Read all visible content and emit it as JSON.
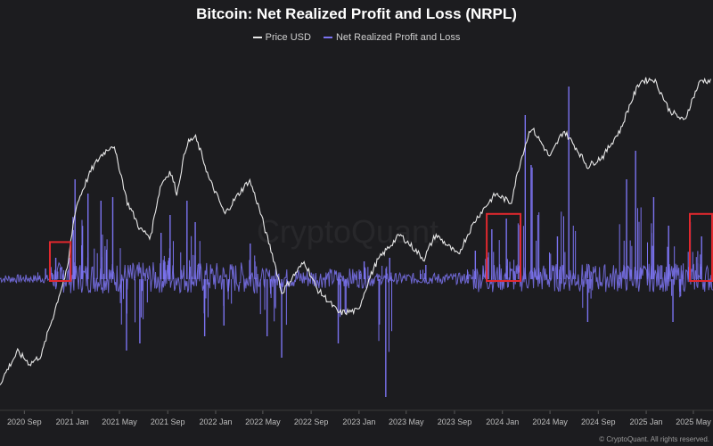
{
  "chart_data": {
    "type": "line",
    "title": "Bitcoin: Net Realized Profit and Loss (NRPL)",
    "legend_position": "top-center",
    "grid": false,
    "x_range": [
      "2020-07-01",
      "2025-06-20"
    ],
    "x_ticks": [
      "2020 Sep",
      "2021 Jan",
      "2021 May",
      "2021 Sep",
      "2022 Jan",
      "2022 May",
      "2022 Sep",
      "2023 Jan",
      "2023 May",
      "2023 Sep",
      "2024 Jan",
      "2024 May",
      "2024 Sep",
      "2025 Jan",
      "2025 May"
    ],
    "series": [
      {
        "name": "Price USD",
        "color": "#e8e8e8",
        "points": [
          [
            "2020-07-01",
            9100
          ],
          [
            "2020-08-15",
            11800
          ],
          [
            "2020-09-15",
            10700
          ],
          [
            "2020-10-15",
            11500
          ],
          [
            "2020-11-15",
            16000
          ],
          [
            "2020-12-20",
            23000
          ],
          [
            "2021-01-10",
            38000
          ],
          [
            "2021-02-20",
            52000
          ],
          [
            "2021-03-15",
            58000
          ],
          [
            "2021-04-14",
            63500
          ],
          [
            "2021-05-20",
            40000
          ],
          [
            "2021-06-22",
            32000
          ],
          [
            "2021-07-20",
            30000
          ],
          [
            "2021-08-15",
            46000
          ],
          [
            "2021-09-07",
            51000
          ],
          [
            "2021-09-25",
            42500
          ],
          [
            "2021-10-20",
            64000
          ],
          [
            "2021-11-10",
            67500
          ],
          [
            "2021-12-15",
            48000
          ],
          [
            "2022-01-24",
            36000
          ],
          [
            "2022-03-28",
            47500
          ],
          [
            "2022-05-10",
            30500
          ],
          [
            "2022-06-18",
            19000
          ],
          [
            "2022-08-15",
            24500
          ],
          [
            "2022-09-15",
            19700
          ],
          [
            "2022-11-10",
            16200
          ],
          [
            "2022-12-30",
            16500
          ],
          [
            "2023-02-15",
            24500
          ],
          [
            "2023-04-15",
            30500
          ],
          [
            "2023-06-15",
            25000
          ],
          [
            "2023-07-15",
            30500
          ],
          [
            "2023-09-10",
            25800
          ],
          [
            "2023-10-25",
            34500
          ],
          [
            "2023-12-15",
            42500
          ],
          [
            "2024-01-23",
            39500
          ],
          [
            "2024-03-14",
            73000
          ],
          [
            "2024-05-01",
            57000
          ],
          [
            "2024-06-05",
            71000
          ],
          [
            "2024-08-05",
            53000
          ],
          [
            "2024-09-15",
            58000
          ],
          [
            "2024-10-29",
            72000
          ],
          [
            "2024-12-17",
            106000
          ],
          [
            "2025-01-20",
            108000
          ],
          [
            "2025-02-28",
            84000
          ],
          [
            "2025-04-08",
            76500
          ],
          [
            "2025-05-20",
            107000
          ],
          [
            "2025-06-15",
            106000
          ]
        ]
      },
      {
        "name": "Net Realized Profit and Loss",
        "color": "#7b73f0",
        "points": [
          [
            "2020-07-01",
            0.01
          ],
          [
            "2020-09-15",
            0.02
          ],
          [
            "2020-10-25",
            0.3
          ],
          [
            "2020-11-20",
            0.6
          ],
          [
            "2020-12-25",
            0.6
          ],
          [
            "2021-01-08",
            2.8
          ],
          [
            "2021-02-10",
            2.4
          ],
          [
            "2021-03-15",
            2.2
          ],
          [
            "2021-04-14",
            2.3
          ],
          [
            "2021-05-19",
            -2.0
          ],
          [
            "2021-06-22",
            -1.8
          ],
          [
            "2021-08-15",
            1.3
          ],
          [
            "2021-09-07",
            1.8
          ],
          [
            "2021-10-20",
            2.2
          ],
          [
            "2021-11-10",
            1.6
          ],
          [
            "2021-12-04",
            -1.6
          ],
          [
            "2022-01-22",
            -1.3
          ],
          [
            "2022-03-30",
            1.0
          ],
          [
            "2022-05-12",
            -1.6
          ],
          [
            "2022-06-18",
            -2.2
          ],
          [
            "2022-11-09",
            -1.8
          ],
          [
            "2023-01-14",
            0.5
          ],
          [
            "2023-03-10",
            -3.3
          ],
          [
            "2023-03-20",
            0.6
          ],
          [
            "2023-06-20",
            0.4
          ],
          [
            "2023-10-24",
            0.8
          ],
          [
            "2023-12-05",
            1.4
          ],
          [
            "2024-01-11",
            1.7
          ],
          [
            "2024-02-28",
            4.6
          ],
          [
            "2024-03-14",
            3.2
          ],
          [
            "2024-05-20",
            1.2
          ],
          [
            "2024-06-18",
            5.4
          ],
          [
            "2024-08-05",
            -1.2
          ],
          [
            "2024-11-12",
            2.8
          ],
          [
            "2024-12-05",
            3.6
          ],
          [
            "2025-01-20",
            2.3
          ],
          [
            "2025-02-27",
            1.5
          ],
          [
            "2025-03-10",
            -1.2
          ],
          [
            "2025-04-23",
            1.6
          ],
          [
            "2025-05-22",
            1.2
          ]
        ]
      }
    ],
    "highlight_boxes": [
      {
        "x0": "2020-11-05",
        "x1": "2020-12-28",
        "y0": -0.05,
        "y1": 1.04
      },
      {
        "x0": "2023-11-22",
        "x1": "2024-02-16",
        "y0": -0.05,
        "y1": 1.83
      },
      {
        "x0": "2025-04-22",
        "x1": "2025-06-20",
        "y0": -0.05,
        "y1": 1.83
      }
    ]
  },
  "watermark": "CryptoQuant",
  "credit": "© CryptoQuant. All rights reserved."
}
